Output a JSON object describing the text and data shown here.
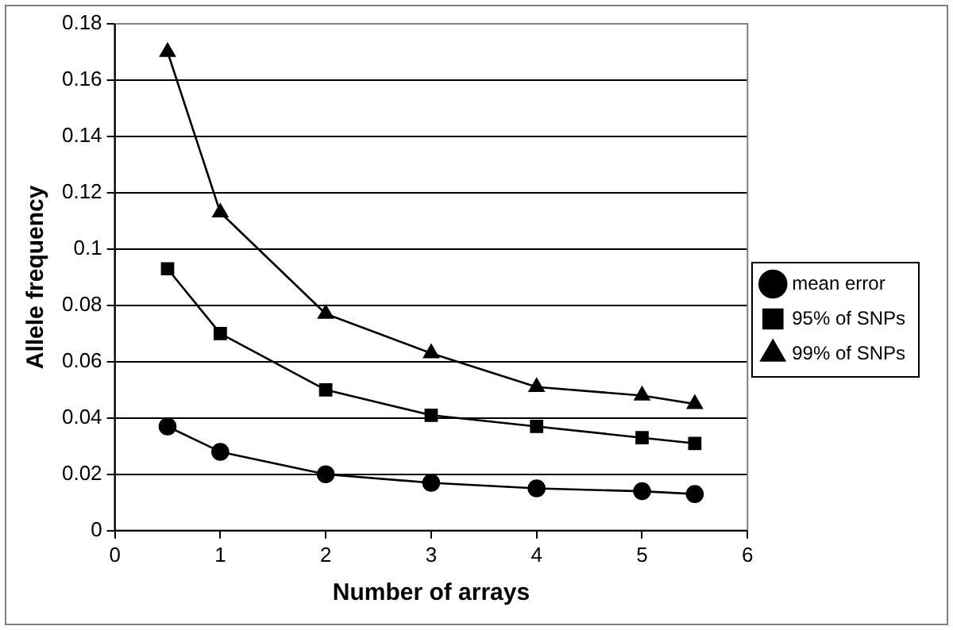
{
  "chart_data": {
    "type": "line",
    "xlabel": "Number of arrays",
    "ylabel": "Allele frequency",
    "x": [
      0.5,
      1,
      2,
      3,
      4,
      5,
      5.5
    ],
    "xlim": [
      0,
      6
    ],
    "xticks": [
      0,
      1,
      2,
      3,
      4,
      5,
      6
    ],
    "ylim": [
      0,
      0.18
    ],
    "yticks": [
      0,
      0.02,
      0.04,
      0.06,
      0.08,
      0.1,
      0.12,
      0.14,
      0.16,
      0.18
    ],
    "grid": "y",
    "legend": "right",
    "line_style": "solid",
    "series": [
      {
        "name": "mean error",
        "color": "#000000",
        "marker": "circle",
        "values": [
          0.037,
          0.028,
          0.02,
          0.017,
          0.015,
          0.014,
          0.013
        ]
      },
      {
        "name": "95% of SNPs",
        "color": "#000000",
        "marker": "square",
        "values": [
          0.093,
          0.07,
          0.05,
          0.041,
          0.037,
          0.033,
          0.031
        ]
      },
      {
        "name": "99% of SNPs",
        "color": "#000000",
        "marker": "triangle",
        "values": [
          0.17,
          0.113,
          0.077,
          0.063,
          0.051,
          0.048,
          0.045
        ]
      }
    ]
  }
}
